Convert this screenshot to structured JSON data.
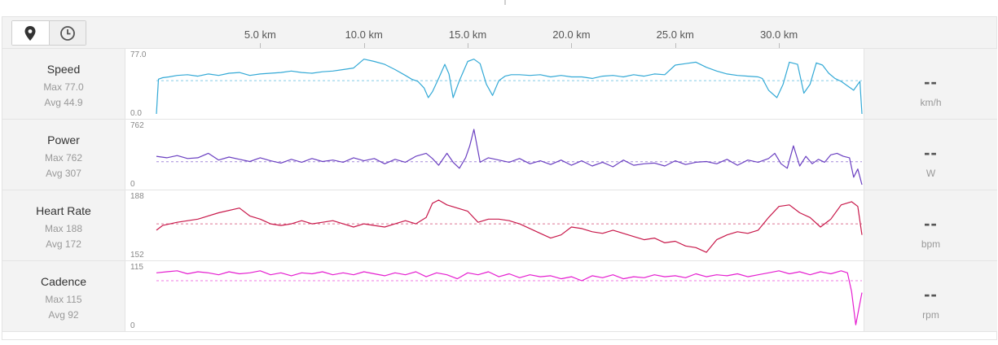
{
  "toolbar": {
    "map_toggle_icon": "map-pin-icon",
    "time_toggle_icon": "clock-icon"
  },
  "chart_data": {
    "type": "line",
    "x_unit": "km",
    "x_range": [
      0,
      34
    ],
    "x_ticks": [
      {
        "value": 5,
        "label": "5.0 km"
      },
      {
        "value": 10,
        "label": "10.0 km"
      },
      {
        "value": 15,
        "label": "15.0 km"
      },
      {
        "value": 20,
        "label": "20.0 km"
      },
      {
        "value": 25,
        "label": "25.0 km"
      },
      {
        "value": 30,
        "label": "30.0 km"
      }
    ],
    "series": [
      {
        "name": "Speed",
        "max_label": "Max 77.0",
        "avg_label": "Avg 44.9",
        "current": "--",
        "unit": "km/h",
        "color": "#33a9d6",
        "ymin": 0,
        "ymax": 77,
        "avg": 44.9,
        "ytick_top": "77.0",
        "ytick_bottom": "0.0",
        "x": [
          0,
          0.1,
          0.3,
          0.6,
          1,
          1.5,
          2,
          2.5,
          3,
          3.5,
          4,
          4.5,
          5,
          5.5,
          6,
          6.5,
          7,
          7.5,
          8,
          8.5,
          9,
          9.5,
          10,
          10.5,
          11,
          11.5,
          12,
          12.3,
          12.6,
          12.9,
          13.1,
          13.3,
          13.6,
          13.9,
          14.1,
          14.3,
          14.6,
          15,
          15.3,
          15.6,
          15.9,
          16.2,
          16.5,
          16.8,
          17.1,
          17.5,
          18,
          18.5,
          19,
          19.5,
          20,
          20.5,
          21,
          21.5,
          22,
          22.5,
          23,
          23.5,
          24,
          24.5,
          25,
          25.5,
          26,
          26.5,
          27,
          27.5,
          28,
          28.5,
          29,
          29.2,
          29.5,
          29.9,
          30.2,
          30.5,
          30.9,
          31.2,
          31.5,
          31.8,
          32.1,
          32.4,
          32.7,
          33,
          33.3,
          33.6,
          33.9,
          34
        ],
        "y": [
          0,
          47,
          49,
          50,
          52,
          53,
          51,
          54,
          52,
          55,
          56,
          52,
          54,
          55,
          56,
          58,
          56,
          55,
          57,
          58,
          60,
          62,
          74,
          71,
          67,
          60,
          52,
          47,
          44,
          35,
          22,
          30,
          48,
          67,
          54,
          22,
          45,
          71,
          74,
          68,
          40,
          25,
          45,
          51,
          53,
          53,
          52,
          53,
          50,
          52,
          50,
          50,
          48,
          51,
          52,
          50,
          53,
          51,
          54,
          53,
          66,
          68,
          70,
          63,
          58,
          54,
          52,
          51,
          50,
          48,
          32,
          22,
          40,
          70,
          67,
          28,
          40,
          69,
          66,
          55,
          48,
          44,
          38,
          32,
          44,
          0
        ]
      },
      {
        "name": "Power",
        "max_label": "Max 762",
        "avg_label": "Avg 307",
        "current": "--",
        "unit": "W",
        "color": "#6a3fc1",
        "ymin": 0,
        "ymax": 762,
        "avg": 307,
        "ytick_top": "762",
        "ytick_bottom": "0",
        "x": [
          0,
          0.5,
          1,
          1.5,
          2,
          2.5,
          3,
          3.5,
          4,
          4.5,
          5,
          5.5,
          6,
          6.5,
          7,
          7.5,
          8,
          8.5,
          9,
          9.5,
          10,
          10.5,
          11,
          11.5,
          12,
          12.5,
          13,
          13.3,
          13.6,
          14,
          14.3,
          14.6,
          14.9,
          15.1,
          15.3,
          15.6,
          16,
          16.5,
          17,
          17.5,
          18,
          18.5,
          19,
          19.5,
          20,
          20.5,
          21,
          21.5,
          22,
          22.5,
          23,
          23.5,
          24,
          24.5,
          25,
          25.5,
          26,
          26.5,
          27,
          27.5,
          28,
          28.5,
          29,
          29.5,
          29.8,
          30.1,
          30.4,
          30.7,
          31,
          31.3,
          31.6,
          31.9,
          32.2,
          32.5,
          32.8,
          33.1,
          33.4,
          33.6,
          33.8,
          34
        ],
        "y": [
          380,
          360,
          390,
          350,
          360,
          420,
          330,
          370,
          340,
          310,
          360,
          320,
          290,
          340,
          300,
          350,
          310,
          330,
          300,
          360,
          320,
          350,
          280,
          340,
          300,
          380,
          420,
          350,
          260,
          420,
          300,
          220,
          360,
          520,
          740,
          300,
          360,
          330,
          300,
          350,
          280,
          320,
          270,
          330,
          260,
          320,
          250,
          300,
          240,
          330,
          260,
          280,
          290,
          250,
          320,
          270,
          300,
          310,
          280,
          340,
          260,
          330,
          300,
          350,
          420,
          280,
          220,
          520,
          250,
          380,
          280,
          340,
          300,
          400,
          420,
          380,
          360,
          100,
          210,
          0
        ]
      },
      {
        "name": "Heart Rate",
        "max_label": "Max 188",
        "avg_label": "Avg 172",
        "current": "--",
        "unit": "bpm",
        "color": "#c8184a",
        "ymin": 152,
        "ymax": 188,
        "avg": 172,
        "ytick_top": "188",
        "ytick_bottom": "152",
        "x": [
          0,
          0.3,
          1,
          2,
          3,
          4,
          4.5,
          5,
          5.5,
          6,
          6.5,
          7,
          7.5,
          8,
          8.5,
          9,
          9.5,
          10,
          10.5,
          11,
          11.5,
          12,
          12.5,
          13,
          13.3,
          13.6,
          14,
          14.5,
          15,
          15.5,
          16,
          16.5,
          17,
          17.5,
          18,
          18.5,
          19,
          19.5,
          20,
          20.5,
          21,
          21.5,
          22,
          22.5,
          23,
          23.5,
          24,
          24.5,
          25,
          25.5,
          26,
          26.5,
          27,
          27.5,
          28,
          28.5,
          29,
          29.5,
          30,
          30.5,
          31,
          31.5,
          32,
          32.5,
          33,
          33.5,
          33.8,
          34
        ],
        "y": [
          168,
          171,
          173,
          175,
          179,
          182,
          177,
          175,
          172,
          171,
          172,
          174,
          172,
          173,
          174,
          172,
          170,
          172,
          171,
          170,
          172,
          174,
          172,
          176,
          185,
          187,
          184,
          182,
          180,
          173,
          175,
          175,
          174,
          172,
          169,
          166,
          163,
          165,
          170,
          169,
          167,
          166,
          168,
          166,
          164,
          162,
          163,
          160,
          161,
          158,
          157,
          154,
          162,
          165,
          167,
          166,
          168,
          176,
          183,
          184,
          179,
          176,
          170,
          175,
          184,
          186,
          183,
          165
        ]
      },
      {
        "name": "Cadence",
        "max_label": "Max 115",
        "avg_label": "Avg 92",
        "current": "--",
        "unit": "rpm",
        "color": "#e51ed0",
        "ymin": 0,
        "ymax": 115,
        "avg": 92,
        "ytick_top": "115",
        "ytick_bottom": "0",
        "x": [
          0,
          0.5,
          1,
          1.5,
          2,
          2.5,
          3,
          3.5,
          4,
          4.5,
          5,
          5.5,
          6,
          6.5,
          7,
          7.5,
          8,
          8.5,
          9,
          9.5,
          10,
          10.5,
          11,
          11.5,
          12,
          12.5,
          13,
          13.5,
          14,
          14.5,
          15,
          15.5,
          16,
          16.5,
          17,
          17.5,
          18,
          18.5,
          19,
          19.5,
          20,
          20.5,
          21,
          21.5,
          22,
          22.5,
          23,
          23.5,
          24,
          24.5,
          25,
          25.5,
          26,
          26.5,
          27,
          27.5,
          28,
          28.5,
          29,
          29.5,
          30,
          30.5,
          31,
          31.5,
          32,
          32.5,
          33,
          33.3,
          33.5,
          33.7,
          34
        ],
        "y": [
          108,
          110,
          112,
          106,
          110,
          108,
          104,
          110,
          106,
          108,
          112,
          104,
          108,
          102,
          108,
          106,
          110,
          104,
          108,
          104,
          110,
          106,
          102,
          108,
          104,
          110,
          100,
          108,
          104,
          96,
          108,
          104,
          110,
          100,
          106,
          98,
          104,
          100,
          102,
          96,
          100,
          92,
          102,
          98,
          104,
          96,
          100,
          98,
          104,
          100,
          102,
          98,
          106,
          100,
          104,
          102,
          106,
          100,
          104,
          108,
          112,
          106,
          110,
          104,
          110,
          106,
          112,
          108,
          70,
          3,
          68
        ]
      }
    ]
  }
}
